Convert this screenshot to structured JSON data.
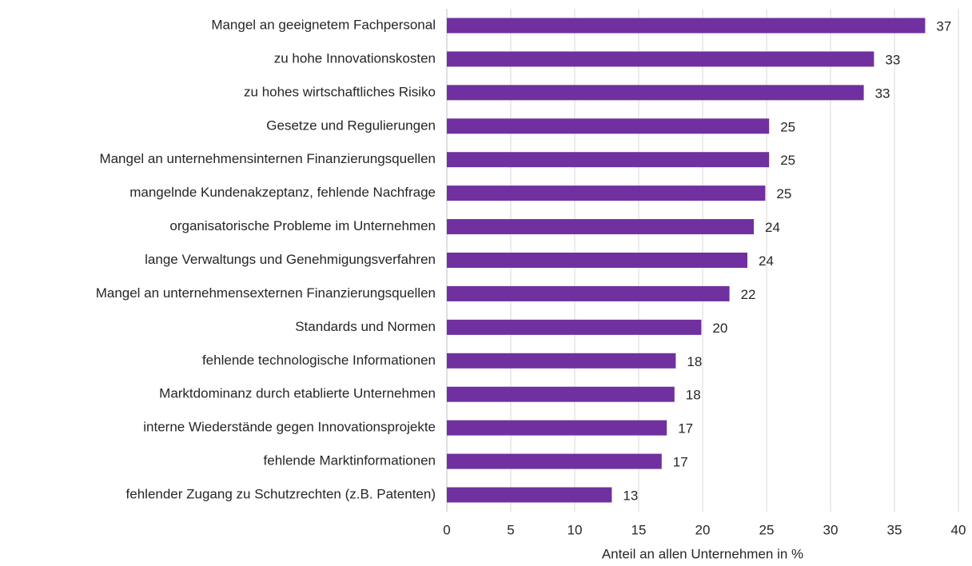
{
  "chart_data": {
    "type": "barh",
    "categories": [
      "Mangel an geeignetem Fachpersonal",
      "zu hohe Innovationskosten",
      "zu hohes wirtschaftliches Risiko",
      "Gesetze und Regulierungen",
      "Mangel an unternehmensinternen Finanzierungsquellen",
      "mangelnde Kundenakzeptanz, fehlende Nachfrage",
      "organisatorische Probleme im Unternehmen",
      "lange Verwaltungs und Genehmigungsverfahren",
      "Mangel an unternehmensexternen Finanzierungsquellen",
      "Standards und Normen",
      "fehlende technologische Informationen",
      "Marktdominanz durch etablierte Unternehmen",
      "interne Wiederstände gegen Innovationsprojekte",
      "fehlende Marktinformationen",
      "fehlender Zugang zu Schutzrechten (z.B. Patenten)"
    ],
    "values": [
      37.4,
      33.4,
      32.6,
      25.2,
      25.2,
      24.9,
      24.0,
      23.5,
      22.1,
      19.9,
      17.9,
      17.8,
      17.2,
      16.8,
      12.9
    ],
    "value_labels": [
      "37",
      "33",
      "33",
      "25",
      "25",
      "25",
      "24",
      "24",
      "22",
      "20",
      "18",
      "18",
      "17",
      "17",
      "13"
    ],
    "color": "#7030a0",
    "xlabel": "Anteil an allen Unternehmen  in %",
    "xlim": [
      0,
      40
    ],
    "xticks": [
      0,
      5,
      10,
      15,
      20,
      25,
      30,
      35,
      40
    ],
    "grid": true
  }
}
